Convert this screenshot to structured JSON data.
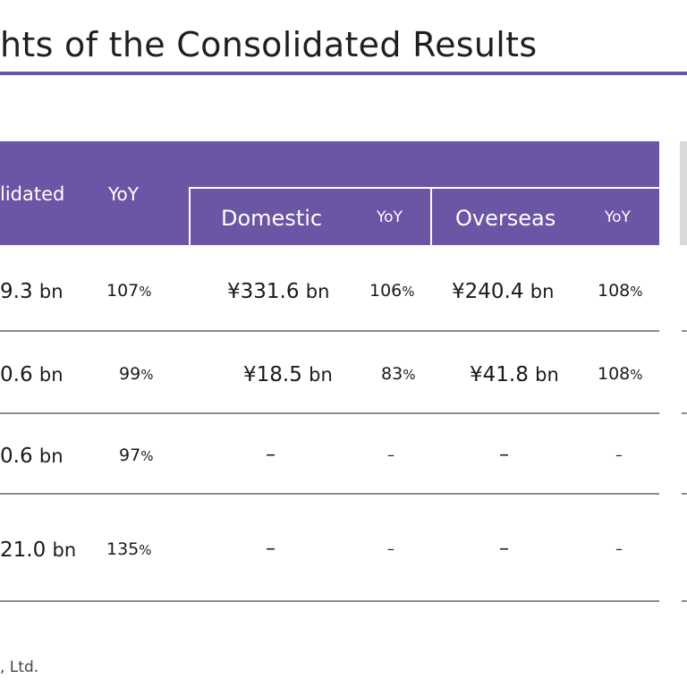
{
  "title": "hts of the Consolidated Results",
  "header": {
    "consolidated": "lidated",
    "yoy_main": "YoY",
    "domestic": "Domestic",
    "yoy_domestic": "YoY",
    "overseas": "Overseas",
    "yoy_overseas": "YoY"
  },
  "rows": [
    {
      "consolidated": "9.3",
      "consolidated_unit": "bn",
      "yoy": "107",
      "yoy_unit": "%",
      "domestic": "¥331.6",
      "domestic_unit": "bn",
      "domestic_yoy": "106",
      "domestic_yoy_unit": "%",
      "overseas": "¥240.4",
      "overseas_unit": "bn",
      "overseas_yoy": "108",
      "overseas_yoy_unit": "%"
    },
    {
      "consolidated": "0.6",
      "consolidated_unit": "bn",
      "yoy": "99",
      "yoy_unit": "%",
      "domestic": "¥18.5",
      "domestic_unit": "bn",
      "domestic_yoy": "83",
      "domestic_yoy_unit": "%",
      "overseas": "¥41.8",
      "overseas_unit": "bn",
      "overseas_yoy": "108",
      "overseas_yoy_unit": "%"
    },
    {
      "consolidated": "0.6",
      "consolidated_unit": "bn",
      "yoy": "97",
      "yoy_unit": "%",
      "domestic": "–",
      "domestic_yoy": "–",
      "overseas": "–",
      "overseas_yoy": "–"
    },
    {
      "consolidated": "21.0",
      "consolidated_unit": "bn",
      "yoy": "135",
      "yoy_unit": "%",
      "domestic": "–",
      "domestic_yoy": "–",
      "overseas": "–",
      "overseas_yoy": "–"
    }
  ],
  "footer": ", Ltd.",
  "colors": {
    "accent": "#6b55a5",
    "rule": "#8c8c8c",
    "side_panel": "#d9d9d9"
  }
}
